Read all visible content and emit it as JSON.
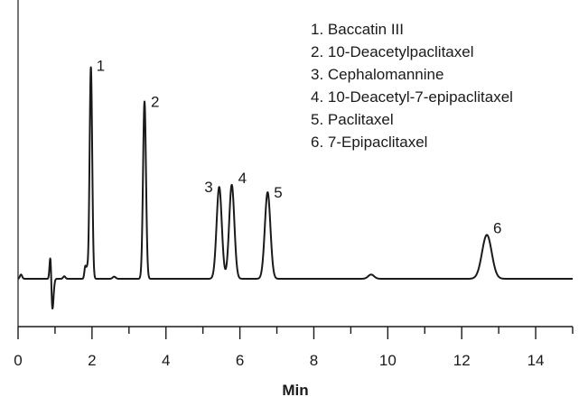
{
  "chart_data": {
    "type": "line",
    "title": "",
    "xlabel": "Min",
    "ylabel": "",
    "xlim": [
      0,
      15
    ],
    "x_ticks": [
      "0",
      "2",
      "4",
      "6",
      "8",
      "10",
      "12",
      "14"
    ],
    "grid": false,
    "legend_placement": "top-right",
    "line_color": "#1a1a1a",
    "peaks": [
      {
        "label": "1",
        "name": "Baccatin III",
        "rt": 1.97,
        "height": 0.998
      },
      {
        "label": "2",
        "name": "10-Deacetylpaclitaxel",
        "rt": 3.42,
        "height": 0.836
      },
      {
        "label": "3",
        "name": "Cephalomannine",
        "rt": 5.44,
        "height": 0.433
      },
      {
        "label": "4",
        "name": "10-Deacetyl-7-epipaclitaxel",
        "rt": 5.78,
        "height": 0.443
      },
      {
        "label": "5",
        "name": "Paclitaxel",
        "rt": 6.75,
        "height": 0.408
      },
      {
        "label": "6",
        "name": "7-Epipaclitaxel",
        "rt": 12.68,
        "height": 0.207
      }
    ],
    "legend_entries": [
      "1.  Baccatin III",
      "2.  10-Deacetylpaclitaxel",
      "3.  Cephalomannine",
      "4.  10-Deacetyl-7-epipaclitaxel",
      "5.  Paclitaxel",
      "6.  7-Epipaclitaxel"
    ]
  }
}
